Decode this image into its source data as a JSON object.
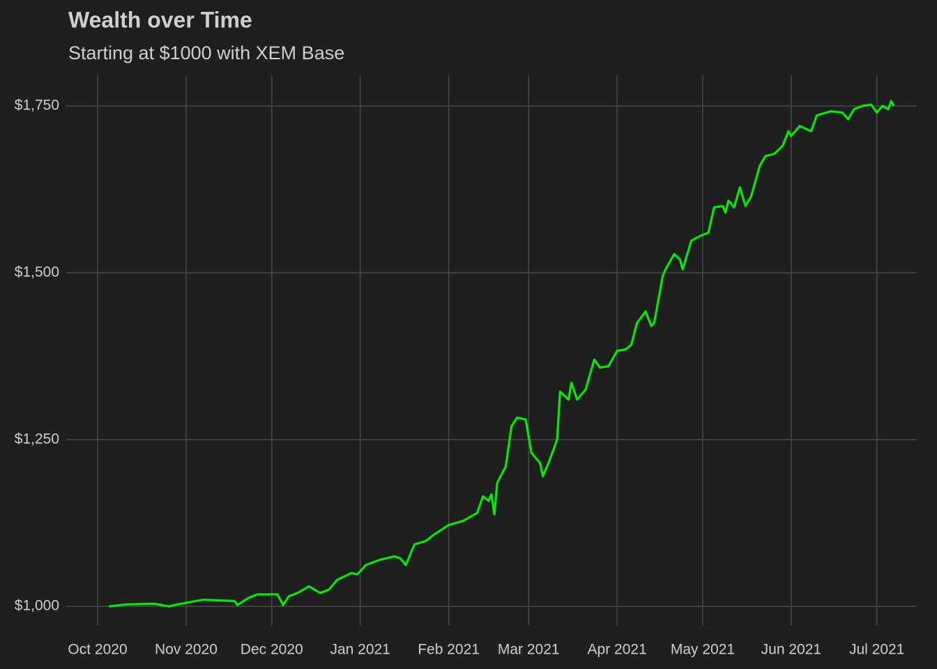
{
  "chart_data": {
    "type": "line",
    "title": "Wealth over Time",
    "subtitle": "Starting at $1000 with XEM Base",
    "x": [
      "2020-10-05",
      "2020-10-11",
      "2020-10-21",
      "2020-10-26",
      "2020-10-29",
      "2020-11-07",
      "2020-11-18",
      "2020-11-19",
      "2020-11-23",
      "2020-11-26",
      "2020-12-03",
      "2020-12-05",
      "2020-12-07",
      "2020-12-10",
      "2020-12-12",
      "2020-12-14",
      "2020-12-18",
      "2020-12-21",
      "2020-12-24",
      "2020-12-29",
      "2020-12-31",
      "2021-01-03",
      "2021-01-08",
      "2021-01-13",
      "2021-01-15",
      "2021-01-17",
      "2021-01-20",
      "2021-01-24",
      "2021-01-27",
      "2021-02-01",
      "2021-02-06",
      "2021-02-11",
      "2021-02-13",
      "2021-02-15",
      "2021-02-16",
      "2021-02-17",
      "2021-02-18",
      "2021-02-21",
      "2021-02-23",
      "2021-02-25",
      "2021-02-28",
      "2021-03-02",
      "2021-03-05",
      "2021-03-06",
      "2021-03-08",
      "2021-03-11",
      "2021-03-12",
      "2021-03-15",
      "2021-03-16",
      "2021-03-18",
      "2021-03-21",
      "2021-03-24",
      "2021-03-26",
      "2021-03-29",
      "2021-04-01",
      "2021-04-04",
      "2021-04-06",
      "2021-04-08",
      "2021-04-11",
      "2021-04-13",
      "2021-04-14",
      "2021-04-17",
      "2021-04-18",
      "2021-04-21",
      "2021-04-23",
      "2021-04-24",
      "2021-04-27",
      "2021-04-30",
      "2021-05-03",
      "2021-05-05",
      "2021-05-08",
      "2021-05-09",
      "2021-05-10",
      "2021-05-12",
      "2021-05-14",
      "2021-05-16",
      "2021-05-18",
      "2021-05-21",
      "2021-05-23",
      "2021-05-26",
      "2021-05-29",
      "2021-05-31",
      "2021-06-01",
      "2021-06-04",
      "2021-06-08",
      "2021-06-10",
      "2021-06-15",
      "2021-06-19",
      "2021-06-21",
      "2021-06-23",
      "2021-06-26",
      "2021-06-29",
      "2021-07-01",
      "2021-07-03",
      "2021-07-05",
      "2021-07-06",
      "2021-07-07"
    ],
    "series": [
      {
        "name": "Wealth",
        "color": "#00ee00",
        "values": [
          1000,
          1003,
          1004,
          1000,
          1003,
          1010,
          1008,
          1002,
          1013,
          1018,
          1018,
          1002,
          1015,
          1020,
          1025,
          1030,
          1020,
          1025,
          1040,
          1050,
          1048,
          1062,
          1070,
          1075,
          1072,
          1062,
          1093,
          1098,
          1108,
          1122,
          1128,
          1140,
          1165,
          1158,
          1168,
          1138,
          1185,
          1210,
          1270,
          1283,
          1280,
          1230,
          1215,
          1195,
          1215,
          1250,
          1322,
          1310,
          1335,
          1310,
          1325,
          1370,
          1358,
          1360,
          1383,
          1385,
          1392,
          1425,
          1442,
          1420,
          1425,
          1495,
          1505,
          1528,
          1520,
          1505,
          1548,
          1555,
          1560,
          1598,
          1600,
          1590,
          1608,
          1598,
          1628,
          1600,
          1615,
          1660,
          1675,
          1678,
          1690,
          1712,
          1705,
          1720,
          1712,
          1736,
          1742,
          1740,
          1730,
          1745,
          1750,
          1752,
          1740,
          1750,
          1745,
          1757,
          1750
        ]
      }
    ],
    "xlim": [
      "2020-09-20",
      "2021-07-15"
    ],
    "xticks": [
      {
        "value": "2020-10-01",
        "label": "Oct 2020"
      },
      {
        "value": "2020-11-01",
        "label": "Nov 2020"
      },
      {
        "value": "2020-12-01",
        "label": "Dec 2020"
      },
      {
        "value": "2021-01-01",
        "label": "Jan 2021"
      },
      {
        "value": "2021-02-01",
        "label": "Feb 2021"
      },
      {
        "value": "2021-03-01",
        "label": "Mar 2021"
      },
      {
        "value": "2021-04-01",
        "label": "Apr 2021"
      },
      {
        "value": "2021-05-01",
        "label": "May 2021"
      },
      {
        "value": "2021-06-01",
        "label": "Jun 2021"
      },
      {
        "value": "2021-07-01",
        "label": "Jul 2021"
      }
    ],
    "ylim": [
      972,
      1796
    ],
    "yticks": [
      {
        "value": 1000,
        "label": "$1,000"
      },
      {
        "value": 1250,
        "label": "$1,250"
      },
      {
        "value": 1500,
        "label": "$1,500"
      },
      {
        "value": 1750,
        "label": "$1,750"
      }
    ],
    "grid": true
  }
}
